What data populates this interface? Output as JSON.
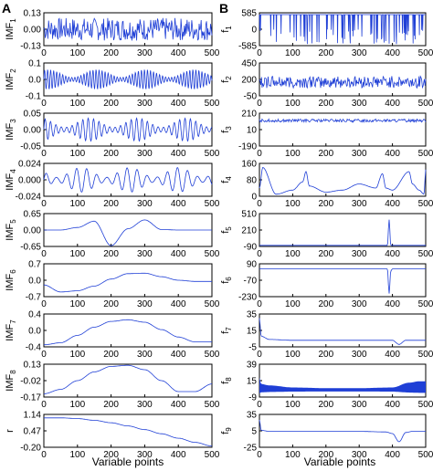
{
  "panels": {
    "left_label": "A",
    "right_label": "B",
    "left_xlabel": "Variable points",
    "right_xlabel": "Variable points"
  },
  "chart_data": [
    {
      "type": "line",
      "panel": "A",
      "row": 1,
      "ylabel_base": "IMF",
      "ylabel_sub": "1",
      "ylim": [
        -0.13,
        0.13
      ],
      "yticks": [
        "0.13",
        "0.00",
        "-0.13"
      ],
      "xlim": [
        0,
        500
      ],
      "xticks": [
        "0",
        "100",
        "200",
        "300",
        "400",
        "500"
      ],
      "show_xticklabels": true,
      "color": "#1f3fd6",
      "series": [
        {
          "signal": "noise",
          "amp": 0.09,
          "x": [
            0,
            100,
            200,
            300,
            400,
            500
          ],
          "y": [
            0,
            0,
            0,
            0,
            0,
            0
          ]
        }
      ]
    },
    {
      "type": "line",
      "panel": "A",
      "row": 2,
      "ylabel_base": "IMF",
      "ylabel_sub": "2",
      "ylim": [
        -0.1,
        0.1
      ],
      "yticks": [
        "0.1",
        "0.0",
        "-0.1"
      ],
      "xlim": [
        0,
        500
      ],
      "xticks": [
        "0",
        "100",
        "200",
        "300",
        "400",
        "500"
      ],
      "show_xticklabels": true,
      "color": "#1f3fd6",
      "series": [
        {
          "signal": "osc",
          "period": 9,
          "amp": 0.06,
          "x": [
            0,
            100,
            200,
            300,
            400,
            500
          ],
          "y": [
            0,
            0,
            0,
            0,
            0,
            0
          ]
        }
      ]
    },
    {
      "type": "line",
      "panel": "A",
      "row": 3,
      "ylabel_base": "IMF",
      "ylabel_sub": "3",
      "ylim": [
        -0.05,
        0.05
      ],
      "yticks": [
        "0.05",
        "0.00",
        "-0.05"
      ],
      "xlim": [
        0,
        500
      ],
      "xticks": [
        "0",
        "100",
        "200",
        "300",
        "400",
        "500"
      ],
      "show_xticklabels": true,
      "color": "#1f3fd6",
      "series": [
        {
          "signal": "osc",
          "period": 16,
          "amp": 0.035,
          "x": [
            0,
            100,
            200,
            300,
            400,
            500
          ],
          "y": [
            0,
            0,
            0,
            0,
            0,
            0
          ]
        }
      ]
    },
    {
      "type": "line",
      "panel": "A",
      "row": 4,
      "ylabel_base": "IMF",
      "ylabel_sub": "4",
      "ylim": [
        -0.024,
        0.024
      ],
      "yticks": [
        "0.024",
        "0.000",
        "-0.024"
      ],
      "xlim": [
        0,
        500
      ],
      "xticks": [
        "0",
        "100",
        "200",
        "300",
        "400",
        "500"
      ],
      "show_xticklabels": true,
      "color": "#1f3fd6",
      "series": [
        {
          "signal": "osc",
          "period": 30,
          "amp": 0.018,
          "x": [
            0,
            100,
            200,
            300,
            400,
            500
          ],
          "y": [
            0,
            0,
            0,
            0,
            0,
            0
          ]
        }
      ]
    },
    {
      "type": "line",
      "panel": "A",
      "row": 5,
      "ylabel_base": "IMF",
      "ylabel_sub": "5",
      "ylim": [
        -0.65,
        0.65
      ],
      "yticks": [
        "0.65",
        "0.00",
        "-0.65"
      ],
      "xlim": [
        0,
        500
      ],
      "xticks": [
        "0",
        "100",
        "200",
        "300",
        "400",
        "500"
      ],
      "show_xticklabels": true,
      "color": "#1f3fd6",
      "series": [
        {
          "signal": "smooth",
          "x": [
            0,
            50,
            100,
            150,
            200,
            250,
            300,
            350,
            400,
            450,
            500
          ],
          "y": [
            0,
            0,
            0.1,
            0.35,
            -0.62,
            0.05,
            0.4,
            0.02,
            0,
            0,
            0
          ]
        }
      ]
    },
    {
      "type": "line",
      "panel": "A",
      "row": 6,
      "ylabel_base": "IMF",
      "ylabel_sub": "6",
      "ylim": [
        -0.7,
        0.7
      ],
      "yticks": [
        "0.7",
        "0.0",
        "-0.7"
      ],
      "xlim": [
        0,
        500
      ],
      "xticks": [
        "0",
        "100",
        "200",
        "300",
        "400",
        "500"
      ],
      "show_xticklabels": true,
      "color": "#1f3fd6",
      "series": [
        {
          "signal": "smooth",
          "x": [
            0,
            50,
            100,
            150,
            200,
            250,
            300,
            350,
            400,
            450,
            500
          ],
          "y": [
            -0.2,
            -0.5,
            -0.45,
            -0.25,
            0.05,
            0.28,
            0.3,
            0.15,
            0.0,
            -0.05,
            -0.05
          ]
        }
      ]
    },
    {
      "type": "line",
      "panel": "A",
      "row": 7,
      "ylabel_base": "IMF",
      "ylabel_sub": "7",
      "ylim": [
        -0.4,
        0.4
      ],
      "yticks": [
        "0.4",
        "0.0",
        "-0.4"
      ],
      "xlim": [
        0,
        500
      ],
      "xticks": [
        "0",
        "100",
        "200",
        "300",
        "400",
        "500"
      ],
      "show_xticklabels": true,
      "color": "#1f3fd6",
      "series": [
        {
          "signal": "smooth",
          "x": [
            0,
            50,
            100,
            150,
            200,
            250,
            300,
            350,
            400,
            450,
            500
          ],
          "y": [
            -0.35,
            -0.3,
            -0.12,
            0.08,
            0.22,
            0.26,
            0.2,
            0.02,
            -0.16,
            -0.28,
            -0.28
          ]
        }
      ]
    },
    {
      "type": "line",
      "panel": "A",
      "row": 8,
      "ylabel_base": "IMF",
      "ylabel_sub": "8",
      "ylim": [
        -0.17,
        0.13
      ],
      "yticks": [
        "0.13",
        "-0.02",
        "-0.17"
      ],
      "xlim": [
        0,
        500
      ],
      "xticks": [
        "0",
        "100",
        "200",
        "300",
        "400",
        "500"
      ],
      "show_xticklabels": true,
      "color": "#1f3fd6",
      "series": [
        {
          "signal": "smooth",
          "x": [
            0,
            50,
            100,
            150,
            200,
            250,
            300,
            350,
            400,
            450,
            500
          ],
          "y": [
            -0.14,
            -0.1,
            -0.02,
            0.06,
            0.11,
            0.12,
            0.08,
            -0.02,
            -0.12,
            -0.12,
            -0.05
          ]
        }
      ]
    },
    {
      "type": "line",
      "panel": "A",
      "row": 9,
      "ylabel_base": "r",
      "ylabel_sub": "",
      "ylim": [
        -0.2,
        1.14
      ],
      "yticks": [
        "1.14",
        "0.47",
        "-0.20"
      ],
      "xlim": [
        0,
        500
      ],
      "xticks": [
        "0",
        "100",
        "200",
        "300",
        "400",
        "500"
      ],
      "show_xticklabels": true,
      "color": "#1f3fd6",
      "series": [
        {
          "signal": "smooth",
          "x": [
            0,
            50,
            100,
            150,
            200,
            250,
            300,
            350,
            400,
            450,
            500
          ],
          "y": [
            1.0,
            1.0,
            0.97,
            0.9,
            0.8,
            0.67,
            0.52,
            0.35,
            0.17,
            0.0,
            -0.15
          ]
        }
      ]
    },
    {
      "type": "line",
      "panel": "B",
      "row": 1,
      "ylabel_base": "f",
      "ylabel_sub": "1",
      "ylim": [
        -585,
        585
      ],
      "yticks": [
        "585",
        "0",
        "-585"
      ],
      "xlim": [
        0,
        500
      ],
      "xticks": [
        "0",
        "100",
        "200",
        "300",
        "400",
        "500"
      ],
      "show_xticklabels": true,
      "color": "#1f3fd6",
      "series": [
        {
          "signal": "spikes_down",
          "base": 520,
          "amp": 1050,
          "x": [
            0,
            100,
            200,
            300,
            400,
            500
          ],
          "y": [
            520,
            520,
            520,
            520,
            520,
            520
          ]
        }
      ]
    },
    {
      "type": "line",
      "panel": "B",
      "row": 2,
      "ylabel_base": "f",
      "ylabel_sub": "2",
      "ylim": [
        -50,
        450
      ],
      "yticks": [
        "450",
        "200",
        "-50"
      ],
      "xlim": [
        0,
        500
      ],
      "xticks": [
        "0",
        "100",
        "200",
        "300",
        "400",
        "500"
      ],
      "show_xticklabels": true,
      "color": "#1f3fd6",
      "series": [
        {
          "signal": "noise",
          "amp": 90,
          "x": [
            0,
            100,
            200,
            300,
            400,
            500
          ],
          "y": [
            160,
            160,
            160,
            160,
            160,
            160
          ]
        }
      ]
    },
    {
      "type": "line",
      "panel": "B",
      "row": 3,
      "ylabel_base": "f",
      "ylabel_sub": "3",
      "ylim": [
        -190,
        210
      ],
      "yticks": [
        "210",
        "10",
        "-190"
      ],
      "xlim": [
        0,
        500
      ],
      "xticks": [
        "0",
        "100",
        "200",
        "300",
        "400",
        "500"
      ],
      "show_xticklabels": true,
      "color": "#1f3fd6",
      "series": [
        {
          "signal": "noise",
          "amp": 18,
          "x": [
            0,
            100,
            200,
            300,
            400,
            500
          ],
          "y": [
            120,
            120,
            120,
            120,
            120,
            120
          ]
        }
      ]
    },
    {
      "type": "line",
      "panel": "B",
      "row": 4,
      "ylabel_base": "f",
      "ylabel_sub": "4",
      "ylim": [
        0,
        160
      ],
      "yticks": [
        "160",
        "80",
        "0"
      ],
      "xlim": [
        0,
        500
      ],
      "xticks": [
        "0",
        "100",
        "200",
        "300",
        "400",
        "500"
      ],
      "show_xticklabels": true,
      "color": "#1f3fd6",
      "series": [
        {
          "signal": "smooth",
          "x": [
            0,
            10,
            50,
            100,
            130,
            140,
            150,
            200,
            250,
            300,
            350,
            370,
            380,
            400,
            450,
            460,
            480,
            495,
            500
          ],
          "y": [
            40,
            140,
            10,
            30,
            70,
            120,
            50,
            20,
            30,
            60,
            40,
            110,
            40,
            30,
            120,
            60,
            30,
            10,
            130
          ]
        }
      ]
    },
    {
      "type": "line",
      "panel": "B",
      "row": 5,
      "ylabel_base": "f",
      "ylabel_sub": "5",
      "ylim": [
        -90,
        510
      ],
      "yticks": [
        "510",
        "210",
        "-90"
      ],
      "xlim": [
        0,
        500
      ],
      "xticks": [
        "0",
        "100",
        "200",
        "300",
        "400",
        "500"
      ],
      "show_xticklabels": true,
      "color": "#1f3fd6",
      "series": [
        {
          "signal": "smooth",
          "x": [
            0,
            100,
            200,
            300,
            385,
            390,
            395,
            400,
            450,
            500
          ],
          "y": [
            -70,
            -70,
            -70,
            -70,
            -70,
            400,
            -70,
            -70,
            -70,
            -70
          ]
        }
      ]
    },
    {
      "type": "line",
      "panel": "B",
      "row": 6,
      "ylabel_base": "f",
      "ylabel_sub": "6",
      "ylim": [
        -230,
        90
      ],
      "yticks": [
        "90",
        "-70",
        "-230"
      ],
      "xlim": [
        0,
        500
      ],
      "xticks": [
        "0",
        "100",
        "200",
        "300",
        "400",
        "500"
      ],
      "show_xticklabels": true,
      "color": "#1f3fd6",
      "series": [
        {
          "signal": "smooth",
          "x": [
            0,
            100,
            200,
            300,
            385,
            390,
            395,
            400,
            410,
            450,
            500
          ],
          "y": [
            40,
            40,
            40,
            40,
            40,
            -200,
            20,
            40,
            40,
            40,
            40
          ]
        }
      ]
    },
    {
      "type": "line",
      "panel": "B",
      "row": 7,
      "ylabel_base": "f",
      "ylabel_sub": "7",
      "ylim": [
        -5,
        35
      ],
      "yticks": [
        "35",
        "15",
        "-5"
      ],
      "xlim": [
        0,
        500
      ],
      "xticks": [
        "0",
        "100",
        "200",
        "300",
        "400",
        "500"
      ],
      "show_xticklabels": true,
      "color": "#1f3fd6",
      "series": [
        {
          "signal": "smooth",
          "x": [
            0,
            5,
            30,
            100,
            200,
            300,
            400,
            420,
            440,
            460,
            500
          ],
          "y": [
            30,
            8,
            4,
            3,
            3,
            3,
            3,
            -2,
            3,
            3,
            3
          ]
        }
      ]
    },
    {
      "type": "line",
      "panel": "B",
      "row": 8,
      "ylabel_base": "f",
      "ylabel_sub": "8",
      "ylim": [
        -9,
        39
      ],
      "yticks": [
        "39",
        "15",
        "-9"
      ],
      "xlim": [
        0,
        500
      ],
      "xticks": [
        "0",
        "100",
        "200",
        "300",
        "400",
        "500"
      ],
      "show_xticklabels": true,
      "color": "#1f3fd6",
      "series": [
        {
          "signal": "band",
          "x": [
            0,
            5,
            30,
            100,
            200,
            300,
            400,
            450,
            480,
            500
          ],
          "y": [
            20,
            10,
            8,
            5,
            4,
            4,
            5,
            12,
            14,
            14
          ]
        }
      ]
    },
    {
      "type": "line",
      "panel": "B",
      "row": 9,
      "ylabel_base": "f",
      "ylabel_sub": "9",
      "ylim": [
        -25,
        35
      ],
      "yticks": [
        "35",
        "5",
        "-25"
      ],
      "xlim": [
        0,
        500
      ],
      "xticks": [
        "0",
        "100",
        "200",
        "300",
        "400",
        "500"
      ],
      "show_xticklabels": true,
      "color": "#1f3fd6",
      "series": [
        {
          "signal": "smooth",
          "x": [
            0,
            5,
            30,
            100,
            200,
            300,
            380,
            400,
            420,
            440,
            460,
            500
          ],
          "y": [
            25,
            6,
            4,
            4,
            4,
            4,
            3,
            0,
            -15,
            2,
            4,
            4
          ]
        }
      ]
    }
  ]
}
